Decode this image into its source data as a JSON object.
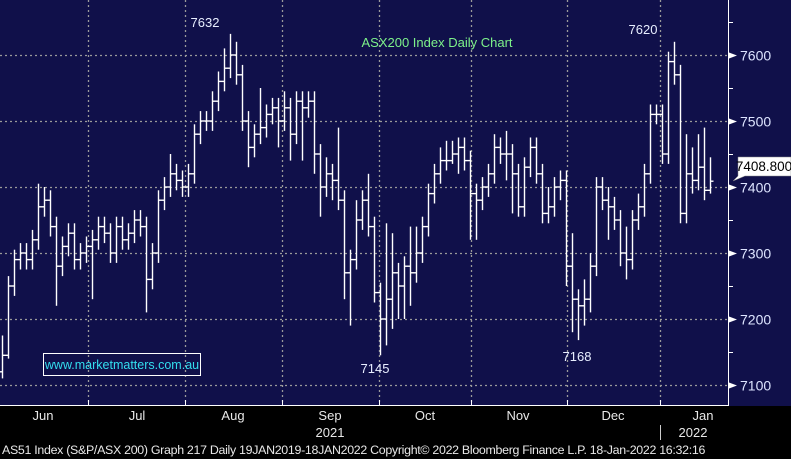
{
  "chart_data": {
    "type": "ohlc",
    "title": "ASX200 Index Daily Chart",
    "ylim": [
      7060,
      7680
    ],
    "yticks": [
      7100,
      7200,
      7300,
      7400,
      7500,
      7600
    ],
    "ytick_labels": [
      "7100",
      "7200",
      "7300",
      "7400",
      "7500",
      "7600"
    ],
    "xticks": [
      "Jun",
      "Jul",
      "Aug",
      "Sep",
      "Oct",
      "Nov",
      "Dec",
      "Jan"
    ],
    "year_labels": [
      "2021",
      "2022"
    ],
    "grid": true,
    "last_price": "7408.800",
    "annotations": [
      "7632",
      "7620",
      "7145",
      "7168"
    ],
    "watermark": "www.marketmatters.com.au",
    "close": [
      7145,
      7250,
      7290,
      7300,
      7290,
      7320,
      7370,
      7380,
      7340,
      7280,
      7310,
      7330,
      7290,
      7300,
      7310,
      7320,
      7340,
      7330,
      7300,
      7340,
      7320,
      7330,
      7350,
      7340,
      7260,
      7300,
      7380,
      7400,
      7420,
      7410,
      7400,
      7420,
      7480,
      7500,
      7500,
      7530,
      7560,
      7580,
      7600,
      7570,
      7500,
      7460,
      7480,
      7490,
      7510,
      7520,
      7500,
      7520,
      7480,
      7530,
      7520,
      7530,
      7450,
      7400,
      7420,
      7410,
      7380,
      7270,
      7290,
      7350,
      7380,
      7340,
      7240,
      7200,
      7230,
      7270,
      7250,
      7280,
      7270,
      7300,
      7340,
      7390,
      7420,
      7440,
      7440,
      7450,
      7460,
      7440,
      7390,
      7380,
      7400,
      7420,
      7460,
      7450,
      7450,
      7420,
      7370,
      7430,
      7460,
      7420,
      7360,
      7370,
      7400,
      7410,
      7280,
      7230,
      7220,
      7230,
      7280,
      7400,
      7380,
      7370,
      7350,
      7300,
      7290,
      7350,
      7370,
      7420,
      7510,
      7510,
      7450,
      7590,
      7570,
      7360,
      7420,
      7410,
      7430,
      7395,
      7408.8
    ],
    "high": [
      7175,
      7265,
      7305,
      7315,
      7315,
      7335,
      7405,
      7400,
      7395,
      7355,
      7325,
      7345,
      7345,
      7315,
      7325,
      7335,
      7355,
      7355,
      7345,
      7355,
      7355,
      7345,
      7365,
      7365,
      7355,
      7315,
      7395,
      7415,
      7450,
      7435,
      7425,
      7435,
      7495,
      7515,
      7515,
      7545,
      7575,
      7610,
      7632,
      7620,
      7585,
      7515,
      7495,
      7550,
      7525,
      7535,
      7535,
      7545,
      7535,
      7545,
      7545,
      7545,
      7545,
      7465,
      7445,
      7435,
      7490,
      7395,
      7305,
      7380,
      7395,
      7420,
      7355,
      7255,
      7345,
      7330,
      7285,
      7295,
      7340,
      7340,
      7355,
      7405,
      7435,
      7460,
      7470,
      7470,
      7475,
      7475,
      7455,
      7405,
      7415,
      7435,
      7480,
      7475,
      7485,
      7465,
      7435,
      7445,
      7475,
      7475,
      7435,
      7400,
      7415,
      7425,
      7425,
      7330,
      7245,
      7260,
      7300,
      7415,
      7415,
      7400,
      7385,
      7365,
      7340,
      7365,
      7390,
      7435,
      7525,
      7525,
      7525,
      7605,
      7620,
      7585,
      7480,
      7460,
      7480,
      7490,
      7445
    ],
    "low": [
      7110,
      7140,
      7235,
      7275,
      7275,
      7275,
      7305,
      7355,
      7325,
      7220,
      7265,
      7295,
      7275,
      7275,
      7285,
      7230,
      7305,
      7315,
      7285,
      7285,
      7305,
      7305,
      7315,
      7325,
      7210,
      7245,
      7285,
      7365,
      7385,
      7395,
      7385,
      7385,
      7405,
      7465,
      7485,
      7485,
      7515,
      7545,
      7565,
      7555,
      7485,
      7430,
      7445,
      7465,
      7475,
      7495,
      7460,
      7485,
      7440,
      7465,
      7440,
      7505,
      7420,
      7355,
      7385,
      7380,
      7365,
      7230,
      7190,
      7275,
      7335,
      7325,
      7225,
      7145,
      7160,
      7185,
      7200,
      7200,
      7220,
      7255,
      7285,
      7325,
      7375,
      7405,
      7425,
      7435,
      7420,
      7425,
      7320,
      7320,
      7365,
      7385,
      7405,
      7435,
      7410,
      7360,
      7355,
      7355,
      7415,
      7405,
      7345,
      7345,
      7355,
      7380,
      7250,
      7180,
      7168,
      7190,
      7210,
      7265,
      7365,
      7320,
      7335,
      7280,
      7260,
      7275,
      7335,
      7355,
      7405,
      7495,
      7435,
      7435,
      7555,
      7345,
      7345,
      7390,
      7395,
      7380,
      7390
    ]
  },
  "footer": {
    "credit": "AS51 Index (S&P/ASX 200) Graph 217  Daily 19JAN2019-18JAN2022 Copyright© 2022 Bloomberg Finance L.P. 18-Jan-2022 16:32:16"
  },
  "colors": {
    "background": "#10104a",
    "bars": "#ffffff",
    "title": "#7df28a",
    "watermark": "#33ddee",
    "grid": "#9a9a9a"
  }
}
